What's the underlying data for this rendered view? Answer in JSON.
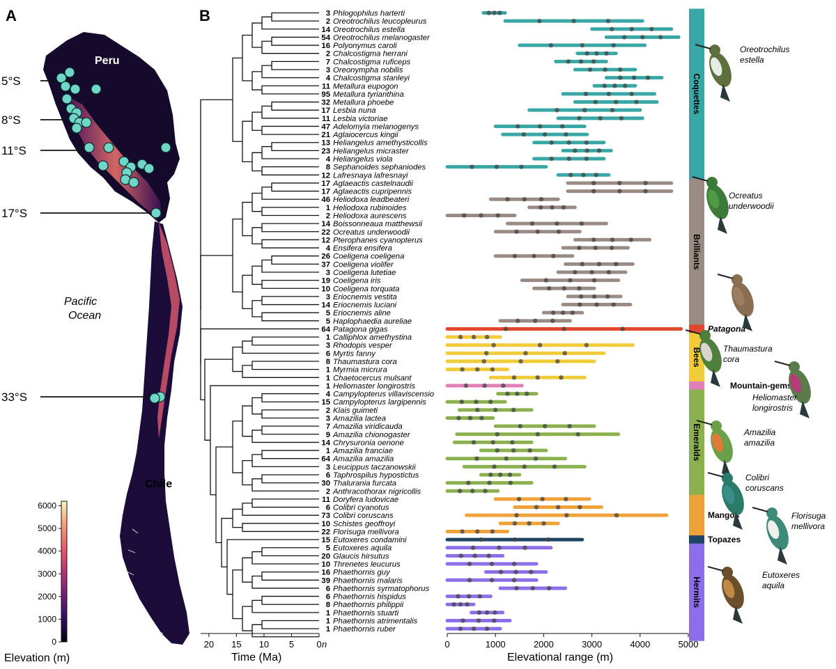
{
  "panel_a": {
    "letter": "A",
    "country_north": "Peru",
    "country_south": "Chile",
    "ocean_line1": "Pacific",
    "ocean_line2": "Ocean",
    "latitudes": [
      "5°S",
      "8°S",
      "11°S",
      "17°S",
      "33°S"
    ],
    "colorbar": {
      "title": "Elevation (m)",
      "ticks": [
        "0",
        "1000",
        "2000",
        "3000",
        "4000",
        "5000",
        "6000"
      ]
    },
    "colors": {
      "low": "#1b0c3a",
      "mid": "#c23d6b",
      "high": "#f7d79a",
      "site": "#6fd6c8"
    }
  },
  "panel_b": {
    "letter": "B",
    "time_axis": {
      "title": "Time (Ma)",
      "ticks": [
        "20",
        "15",
        "10",
        "5",
        "0"
      ],
      "n_label": "n"
    },
    "range_axis": {
      "title": "Elevational range (m)",
      "ticks": [
        "0",
        "1000",
        "2000",
        "3000",
        "4000",
        "5000"
      ]
    },
    "clades": [
      {
        "name": "Coquettes",
        "italic": false,
        "color": "#3aa6a6",
        "rows": [
          0,
          20
        ]
      },
      {
        "name": "Brilliants",
        "italic": false,
        "color": "#9a8c84",
        "rows": [
          21,
          38
        ]
      },
      {
        "name": "Patagona",
        "italic": true,
        "color": "#e0482e",
        "rows": [
          39,
          39
        ]
      },
      {
        "name": "Bees",
        "italic": false,
        "color": "#f1cc3a",
        "rows": [
          40,
          45
        ]
      },
      {
        "name": "Mountain-gems",
        "italic": false,
        "color": "#e07fb8",
        "rows": [
          46,
          46
        ]
      },
      {
        "name": "Emeralds",
        "italic": false,
        "color": "#8ab04f",
        "rows": [
          47,
          59
        ]
      },
      {
        "name": "Mangos",
        "italic": false,
        "color": "#f0a23a",
        "rows": [
          60,
          64
        ]
      },
      {
        "name": "Topazes",
        "italic": false,
        "color": "#1e4466",
        "rows": [
          65,
          65
        ]
      },
      {
        "name": "Hermits",
        "italic": false,
        "color": "#8c6fe8",
        "rows": [
          66,
          77
        ]
      }
    ],
    "species": [
      {
        "n": "3",
        "name": "Phlogophilus harterti",
        "min": 750,
        "max": 1200
      },
      {
        "n": "2",
        "name": "Oreotrochilus leucopleurus",
        "min": 1200,
        "max": 4050
      },
      {
        "n": "14",
        "name": "Oreotrochilus estella",
        "min": 3000,
        "max": 4650
      },
      {
        "n": "54",
        "name": "Oreotrochilus melanogaster",
        "min": 3300,
        "max": 4800
      },
      {
        "n": "16",
        "name": "Polyonymus caroli",
        "min": 1500,
        "max": 4100
      },
      {
        "n": "2",
        "name": "Chalcostigma herrani",
        "min": 2700,
        "max": 3500
      },
      {
        "n": "7",
        "name": "Chalcostigma ruficeps",
        "min": 2250,
        "max": 3300
      },
      {
        "n": "3",
        "name": "Oreonympha nobilis",
        "min": 2650,
        "max": 3900
      },
      {
        "n": "4",
        "name": "Chalcostigma stanleyi",
        "min": 3300,
        "max": 4450
      },
      {
        "n": "11",
        "name": "Metallura eupogon",
        "min": 3050,
        "max": 3900
      },
      {
        "n": "95",
        "name": "Metallura tyrianthina",
        "min": 2400,
        "max": 4300
      },
      {
        "n": "32",
        "name": "Metallura phoebe",
        "min": 2650,
        "max": 4350
      },
      {
        "n": "17",
        "name": "Lesbia nuna",
        "min": 1700,
        "max": 4000
      },
      {
        "n": "11",
        "name": "Lesbia victoriae",
        "min": 2300,
        "max": 4050
      },
      {
        "n": "47",
        "name": "Adelomyia melanogenys",
        "min": 1000,
        "max": 2850
      },
      {
        "n": "21",
        "name": "Aglaiocercus kingii",
        "min": 1150,
        "max": 2900
      },
      {
        "n": "13",
        "name": "Heliangelus amethysticollis",
        "min": 1800,
        "max": 3250
      },
      {
        "n": "23",
        "name": "Heliangelus micraster",
        "min": 2400,
        "max": 3400
      },
      {
        "n": "4",
        "name": "Heliangelus viola",
        "min": 1800,
        "max": 3250
      },
      {
        "n": "8",
        "name": "Sephanoides sephaniodes",
        "min": 0,
        "max": 2050
      },
      {
        "n": "12",
        "name": "Lafresnaya lafresnayi",
        "min": 2300,
        "max": 3350
      },
      {
        "n": "17",
        "name": "Aglaeactis castelnaudii",
        "min": 2500,
        "max": 4650
      },
      {
        "n": "17",
        "name": "Aglaeactis cupripennis",
        "min": 2500,
        "max": 4650
      },
      {
        "n": "46",
        "name": "Heliodoxa leadbeateri",
        "min": 900,
        "max": 2300
      },
      {
        "n": "1",
        "name": "Heliodoxa rubinoides",
        "min": 1700,
        "max": 2650
      },
      {
        "n": "2",
        "name": "Heliodoxa aurescens",
        "min": 0,
        "max": 1400
      },
      {
        "n": "14",
        "name": "Boissonneaua matthewsii",
        "min": 1250,
        "max": 3300
      },
      {
        "n": "22",
        "name": "Ocreatus underwoodii",
        "min": 1000,
        "max": 2750
      },
      {
        "n": "12",
        "name": "Pterophanes cyanopterus",
        "min": 2650,
        "max": 4200
      },
      {
        "n": "4",
        "name": "Ensifera ensifera",
        "min": 2400,
        "max": 3750
      },
      {
        "n": "26",
        "name": "Coeligena coeligena",
        "min": 1000,
        "max": 2600
      },
      {
        "n": "37",
        "name": "Coeligena violifer",
        "min": 2450,
        "max": 3850
      },
      {
        "n": "3",
        "name": "Coeligena lutetiae",
        "min": 2300,
        "max": 3700
      },
      {
        "n": "19",
        "name": "Coeligena iris",
        "min": 1550,
        "max": 3550
      },
      {
        "n": "10",
        "name": "Coeligena torquata",
        "min": 1800,
        "max": 3050
      },
      {
        "n": "3",
        "name": "Eriocnemis vestita",
        "min": 2500,
        "max": 3600
      },
      {
        "n": "14",
        "name": "Eriocnemis luciani",
        "min": 2400,
        "max": 3800
      },
      {
        "n": "5",
        "name": "Eriocnemis aline",
        "min": 2000,
        "max": 2800
      },
      {
        "n": "5",
        "name": "Haplophaedia aureliae",
        "min": 1100,
        "max": 2550
      },
      {
        "n": "64",
        "name": "Patagona gigas",
        "min": 0,
        "max": 4850
      },
      {
        "n": "1",
        "name": "Calliphlox amethystina",
        "min": 0,
        "max": 1100
      },
      {
        "n": "3",
        "name": "Rhodopis vesper",
        "min": 0,
        "max": 3850
      },
      {
        "n": "6",
        "name": "Myrtis fanny",
        "min": 0,
        "max": 3250
      },
      {
        "n": "8",
        "name": "Thaumastura cora",
        "min": 0,
        "max": 3050
      },
      {
        "n": "1",
        "name": "Myrmia micrura",
        "min": 0,
        "max": 1250
      },
      {
        "n": "1",
        "name": "Chaetocercus mulsant",
        "min": 900,
        "max": 2850
      },
      {
        "n": "1",
        "name": "Heliomaster longirostris",
        "min": 0,
        "max": 1550
      },
      {
        "n": "4",
        "name": "Campylopterus villaviscensio",
        "min": 1050,
        "max": 1850
      },
      {
        "n": "15",
        "name": "Campylopterus largipennis",
        "min": 0,
        "max": 1200
      },
      {
        "n": "2",
        "name": "Klais guimeti",
        "min": 250,
        "max": 1750
      },
      {
        "n": "3",
        "name": "Amazilia lactea",
        "min": 0,
        "max": 950
      },
      {
        "n": "7",
        "name": "Amazilia viridicauda",
        "min": 1000,
        "max": 3050
      },
      {
        "n": "9",
        "name": "Amazilia chionogaster",
        "min": 200,
        "max": 3550
      },
      {
        "n": "14",
        "name": "Chrysuronia oenone",
        "min": 150,
        "max": 1750
      },
      {
        "n": "1",
        "name": "Amazilia franciae",
        "min": 700,
        "max": 2050
      },
      {
        "n": "64",
        "name": "Amazilia amazilia",
        "min": 0,
        "max": 2450
      },
      {
        "n": "3",
        "name": "Leucippus taczanowskii",
        "min": 350,
        "max": 2850
      },
      {
        "n": "6",
        "name": "Taphrospilus hypostictus",
        "min": 700,
        "max": 1500
      },
      {
        "n": "30",
        "name": "Thalurania furcata",
        "min": 0,
        "max": 1750
      },
      {
        "n": "2",
        "name": "Anthracothorax nigricollis",
        "min": 0,
        "max": 1050
      },
      {
        "n": "11",
        "name": "Doryfera ludovicae",
        "min": 1000,
        "max": 2950
      },
      {
        "n": "6",
        "name": "Colibri cyanotus",
        "min": 1400,
        "max": 3200
      },
      {
        "n": "73",
        "name": "Colibri coruscans",
        "min": 400,
        "max": 4550
      },
      {
        "n": "10",
        "name": "Schistes geoffroyi",
        "min": 1100,
        "max": 2300
      },
      {
        "n": "22",
        "name": "Florisuga mellivora",
        "min": 0,
        "max": 1250
      },
      {
        "n": "15",
        "name": "Eutoxeres condamini",
        "min": 0,
        "max": 2800
      },
      {
        "n": "5",
        "name": "Eutoxeres aquila",
        "min": 0,
        "max": 2150
      },
      {
        "n": "20",
        "name": "Glaucis hirsutus",
        "min": 0,
        "max": 1150
      },
      {
        "n": "10",
        "name": "Threnetes leucurus",
        "min": 0,
        "max": 1850
      },
      {
        "n": "16",
        "name": "Phaethornis guy",
        "min": 800,
        "max": 2050
      },
      {
        "n": "39",
        "name": "Phaethornis malaris",
        "min": 0,
        "max": 1850
      },
      {
        "n": "6",
        "name": "Phaethornis syrmatophorus",
        "min": 1100,
        "max": 2450
      },
      {
        "n": "6",
        "name": "Phaethornis hispidus",
        "min": 0,
        "max": 900
      },
      {
        "n": "8",
        "name": "Phaethornis philippii",
        "min": 0,
        "max": 550
      },
      {
        "n": "1",
        "name": "Phaethornis stuarti",
        "min": 500,
        "max": 1150
      },
      {
        "n": "1",
        "name": "Phaethornis atrimentalis",
        "min": 0,
        "max": 1300
      },
      {
        "n": "1",
        "name": "Phaethornis ruber",
        "min": 0,
        "max": 1100
      }
    ],
    "bird_captions": [
      {
        "line1": "Oreotrochilus",
        "line2": "estella"
      },
      {
        "line1": "Ocreatus",
        "line2": "underwoodii"
      },
      {
        "line1": "Thaumastura",
        "line2": "cora"
      },
      {
        "line1": "Heliomaster",
        "line2": "longirostris"
      },
      {
        "line1": "Amazilia",
        "line2": "amazilia"
      },
      {
        "line1": "Colibri",
        "line2": "coruscans"
      },
      {
        "line1": "Florisuga",
        "line2": "mellivora"
      },
      {
        "line1": "Eutoxeres",
        "line2": "aquila"
      }
    ]
  }
}
